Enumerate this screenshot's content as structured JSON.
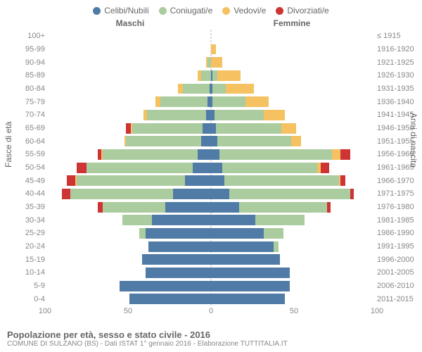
{
  "legend": {
    "items": [
      {
        "label": "Celibi/Nubili",
        "color": "#4f7ba6"
      },
      {
        "label": "Coniugati/e",
        "color": "#abcc9f"
      },
      {
        "label": "Vedovi/e",
        "color": "#f5c161"
      },
      {
        "label": "Divorziati/e",
        "color": "#cf3434"
      }
    ]
  },
  "headers": {
    "male": "Maschi",
    "female": "Femmine"
  },
  "axis_titles": {
    "left": "Fasce di età",
    "right": "Anni di nascita"
  },
  "x_axis": {
    "max": 100,
    "ticks": [
      100,
      50,
      0,
      50,
      100
    ]
  },
  "colors": {
    "single": "#4f7ba6",
    "married": "#abcc9f",
    "widowed": "#f5c161",
    "divorced": "#cf3434",
    "grid": "#bbbbbb",
    "text": "#666666",
    "bg": "#ffffff"
  },
  "typography": {
    "font_family": "Arial",
    "tick_fontsize": 11,
    "legend_fontsize": 12
  },
  "rows": [
    {
      "age": "100+",
      "birth": "≤ 1915",
      "m": {
        "s": 0,
        "c": 0,
        "w": 0,
        "d": 0
      },
      "f": {
        "s": 0,
        "c": 0,
        "w": 0,
        "d": 0
      }
    },
    {
      "age": "95-99",
      "birth": "1916-1920",
      "m": {
        "s": 0,
        "c": 0,
        "w": 0,
        "d": 0
      },
      "f": {
        "s": 0,
        "c": 0,
        "w": 3,
        "d": 0
      }
    },
    {
      "age": "90-94",
      "birth": "1921-1925",
      "m": {
        "s": 0,
        "c": 2,
        "w": 1,
        "d": 0
      },
      "f": {
        "s": 0,
        "c": 0,
        "w": 7,
        "d": 0
      }
    },
    {
      "age": "85-89",
      "birth": "1926-1930",
      "m": {
        "s": 0,
        "c": 6,
        "w": 2,
        "d": 0
      },
      "f": {
        "s": 1,
        "c": 3,
        "w": 14,
        "d": 0
      }
    },
    {
      "age": "80-84",
      "birth": "1931-1935",
      "m": {
        "s": 1,
        "c": 16,
        "w": 3,
        "d": 0
      },
      "f": {
        "s": 1,
        "c": 8,
        "w": 17,
        "d": 0
      }
    },
    {
      "age": "75-79",
      "birth": "1936-1940",
      "m": {
        "s": 2,
        "c": 29,
        "w": 3,
        "d": 0
      },
      "f": {
        "s": 1,
        "c": 20,
        "w": 14,
        "d": 0
      }
    },
    {
      "age": "70-74",
      "birth": "1941-1945",
      "m": {
        "s": 3,
        "c": 36,
        "w": 2,
        "d": 0
      },
      "f": {
        "s": 2,
        "c": 30,
        "w": 13,
        "d": 0
      }
    },
    {
      "age": "65-69",
      "birth": "1946-1950",
      "m": {
        "s": 5,
        "c": 43,
        "w": 1,
        "d": 3
      },
      "f": {
        "s": 3,
        "c": 40,
        "w": 9,
        "d": 0
      }
    },
    {
      "age": "60-64",
      "birth": "1951-1955",
      "m": {
        "s": 6,
        "c": 46,
        "w": 1,
        "d": 0
      },
      "f": {
        "s": 4,
        "c": 45,
        "w": 6,
        "d": 0
      }
    },
    {
      "age": "55-59",
      "birth": "1956-1960",
      "m": {
        "s": 8,
        "c": 58,
        "w": 1,
        "d": 2
      },
      "f": {
        "s": 5,
        "c": 69,
        "w": 5,
        "d": 6
      }
    },
    {
      "age": "50-54",
      "birth": "1961-1965",
      "m": {
        "s": 11,
        "c": 65,
        "w": 0,
        "d": 6
      },
      "f": {
        "s": 7,
        "c": 58,
        "w": 2,
        "d": 5
      }
    },
    {
      "age": "45-49",
      "birth": "1966-1970",
      "m": {
        "s": 16,
        "c": 66,
        "w": 1,
        "d": 5
      },
      "f": {
        "s": 8,
        "c": 70,
        "w": 1,
        "d": 3
      }
    },
    {
      "age": "40-44",
      "birth": "1971-1975",
      "m": {
        "s": 23,
        "c": 63,
        "w": 0,
        "d": 5
      },
      "f": {
        "s": 11,
        "c": 74,
        "w": 0,
        "d": 2
      }
    },
    {
      "age": "35-39",
      "birth": "1976-1980",
      "m": {
        "s": 28,
        "c": 38,
        "w": 0,
        "d": 3
      },
      "f": {
        "s": 17,
        "c": 54,
        "w": 0,
        "d": 2
      }
    },
    {
      "age": "30-34",
      "birth": "1981-1985",
      "m": {
        "s": 36,
        "c": 18,
        "w": 0,
        "d": 0
      },
      "f": {
        "s": 27,
        "c": 30,
        "w": 0,
        "d": 0
      }
    },
    {
      "age": "25-29",
      "birth": "1986-1990",
      "m": {
        "s": 40,
        "c": 4,
        "w": 0,
        "d": 0
      },
      "f": {
        "s": 32,
        "c": 12,
        "w": 0,
        "d": 0
      }
    },
    {
      "age": "20-24",
      "birth": "1991-1995",
      "m": {
        "s": 38,
        "c": 0,
        "w": 0,
        "d": 0
      },
      "f": {
        "s": 38,
        "c": 3,
        "w": 0,
        "d": 0
      }
    },
    {
      "age": "15-19",
      "birth": "1996-2000",
      "m": {
        "s": 42,
        "c": 0,
        "w": 0,
        "d": 0
      },
      "f": {
        "s": 42,
        "c": 0,
        "w": 0,
        "d": 0
      }
    },
    {
      "age": "10-14",
      "birth": "2001-2005",
      "m": {
        "s": 40,
        "c": 0,
        "w": 0,
        "d": 0
      },
      "f": {
        "s": 48,
        "c": 0,
        "w": 0,
        "d": 0
      }
    },
    {
      "age": "5-9",
      "birth": "2006-2010",
      "m": {
        "s": 56,
        "c": 0,
        "w": 0,
        "d": 0
      },
      "f": {
        "s": 48,
        "c": 0,
        "w": 0,
        "d": 0
      }
    },
    {
      "age": "0-4",
      "birth": "2011-2015",
      "m": {
        "s": 50,
        "c": 0,
        "w": 0,
        "d": 0
      },
      "f": {
        "s": 45,
        "c": 0,
        "w": 0,
        "d": 0
      }
    }
  ],
  "footer": {
    "title": "Popolazione per età, sesso e stato civile - 2016",
    "sub": "COMUNE DI SULZANO (BS) - Dati ISTAT 1° gennaio 2016 - Elaborazione TUTTITALIA.IT"
  }
}
